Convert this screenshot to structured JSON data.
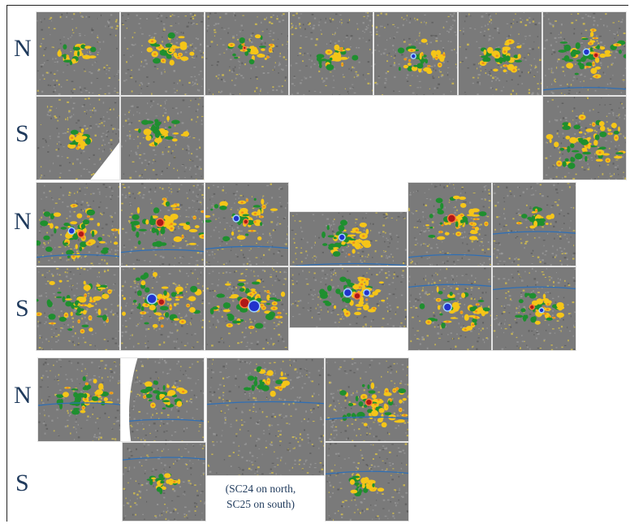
{
  "hemisphere_labels": {
    "north": "N",
    "south": "S"
  },
  "caption": {
    "line1": "(SC24 on north,",
    "line2": "SC25 on south)"
  },
  "colors": {
    "background_field": "#7a7a7a",
    "positive_polarity": "#f5c518",
    "negative_polarity": "#1f8f2f",
    "strong_negative": "#2233cc",
    "strong_positive": "#b01818",
    "equator_line": "#2f6fb5",
    "label_text": "#1f3a5c"
  },
  "panel_timestamps": [
    "",
    "",
    "",
    "",
    "",
    "",
    "",
    "",
    "",
    "",
    "",
    "",
    "",
    "",
    "",
    "",
    "",
    "",
    "",
    "",
    "",
    "",
    "",
    "",
    "",
    "",
    ""
  ]
}
